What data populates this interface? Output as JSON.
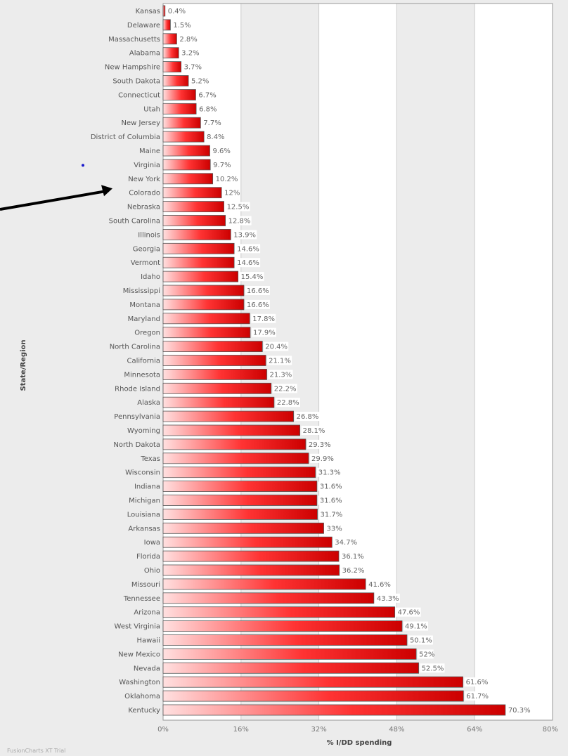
{
  "chart_data": {
    "type": "bar",
    "orientation": "horizontal",
    "xlabel": "% I/DD spending",
    "ylabel": "State/Region",
    "xlim": [
      0,
      80
    ],
    "x_ticks": [
      "0%",
      "16%",
      "32%",
      "48%",
      "64%",
      "80%"
    ],
    "grid": true,
    "categories": [
      "Kansas",
      "Delaware",
      "Massachusetts",
      "Alabama",
      "New Hampshire",
      "South Dakota",
      "Connecticut",
      "Utah",
      "New Jersey",
      "District of Columbia",
      "Maine",
      "Virginia",
      "New York",
      "Colorado",
      "Nebraska",
      "South Carolina",
      "Illinois",
      "Georgia",
      "Vermont",
      "Idaho",
      "Mississippi",
      "Montana",
      "Maryland",
      "Oregon",
      "North Carolina",
      "California",
      "Minnesota",
      "Rhode Island",
      "Alaska",
      "Pennsylvania",
      "Wyoming",
      "North Dakota",
      "Texas",
      "Wisconsin",
      "Indiana",
      "Michigan",
      "Louisiana",
      "Arkansas",
      "Iowa",
      "Florida",
      "Ohio",
      "Missouri",
      "Tennessee",
      "Arizona",
      "West Virginia",
      "Hawaii",
      "New Mexico",
      "Nevada",
      "Washington",
      "Oklahoma",
      "Kentucky"
    ],
    "values": [
      0.4,
      1.5,
      2.8,
      3.2,
      3.7,
      5.2,
      6.7,
      6.8,
      7.7,
      8.4,
      9.6,
      9.7,
      10.2,
      12,
      12.5,
      12.8,
      13.9,
      14.6,
      14.6,
      15.4,
      16.6,
      16.6,
      17.8,
      17.9,
      20.4,
      21.1,
      21.3,
      22.2,
      22.8,
      26.8,
      28.1,
      29.3,
      29.9,
      31.3,
      31.6,
      31.6,
      31.7,
      33,
      34.7,
      36.1,
      36.2,
      41.6,
      43.3,
      47.6,
      49.1,
      50.1,
      52,
      52.5,
      61.6,
      61.7,
      70.3
    ],
    "value_labels": [
      "0.4%",
      "1.5%",
      "2.8%",
      "3.2%",
      "3.7%",
      "5.2%",
      "6.7%",
      "6.8%",
      "7.7%",
      "8.4%",
      "9.6%",
      "9.7%",
      "10.2%",
      "12%",
      "12.5%",
      "12.8%",
      "13.9%",
      "14.6%",
      "14.6%",
      "15.4%",
      "16.6%",
      "16.6%",
      "17.8%",
      "17.9%",
      "20.4%",
      "21.1%",
      "21.3%",
      "22.2%",
      "22.8%",
      "26.8%",
      "28.1%",
      "29.3%",
      "29.9%",
      "31.3%",
      "31.6%",
      "31.6%",
      "31.7%",
      "33%",
      "34.7%",
      "36.1%",
      "36.2%",
      "41.6%",
      "43.3%",
      "47.6%",
      "49.1%",
      "50.1%",
      "52%",
      "52.5%",
      "61.6%",
      "61.7%",
      "70.3%"
    ],
    "highlighted_category": "Colorado",
    "colors": {
      "bar_dark": "#cc0000",
      "bar_light": "#ffe0e0",
      "bar_border": "#555555",
      "plot_bg": "#ffffff",
      "band_bg": "#ececec",
      "arrow": "#000000",
      "dot": "#1a1acc"
    }
  },
  "footer": {
    "watermark": "FusionCharts XT Trial"
  }
}
